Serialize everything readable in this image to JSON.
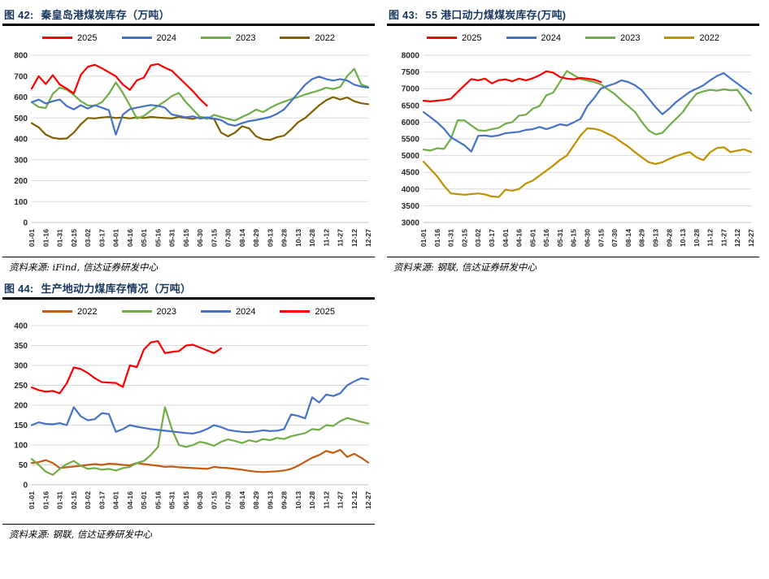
{
  "chart_data": [
    {
      "type": "line",
      "fig_label": "图 42:",
      "title": "秦皇岛港煤炭库存（万吨）",
      "source": "资料来源: iFind, 信达证券研发中心",
      "legend_order": [
        "2025",
        "2024",
        "2023",
        "2022"
      ],
      "legend_position": "top",
      "grid": "horizontal",
      "points_per_tick": 2,
      "y_axis": {
        "min": 0,
        "max": 800,
        "step": 100,
        "tick_labels": [
          "800",
          "700",
          "600",
          "500",
          "400",
          "300",
          "200",
          "100",
          "0"
        ]
      },
      "x_tick_labels": [
        "01-01",
        "01-16",
        "01-31",
        "02-15",
        "03-02",
        "03-17",
        "04-01",
        "04-16",
        "05-01",
        "05-16",
        "05-31",
        "06-15",
        "06-30",
        "07-15",
        "07-30",
        "08-14",
        "08-29",
        "09-13",
        "09-28",
        "10-13",
        "10-28",
        "11-12",
        "11-27",
        "12-12",
        "12-27"
      ],
      "series": [
        {
          "name": "2022",
          "color": "#7F6000",
          "values": [
            475,
            455,
            420,
            405,
            400,
            402,
            430,
            470,
            500,
            498,
            502,
            505,
            500,
            502,
            498,
            503,
            500,
            505,
            502,
            500,
            498,
            505,
            500,
            495,
            505,
            500,
            495,
            430,
            412,
            430,
            460,
            450,
            412,
            398,
            395,
            408,
            415,
            445,
            480,
            500,
            530,
            560,
            585,
            600,
            588,
            598,
            580,
            570,
            566
          ]
        },
        {
          "name": "2023",
          "color": "#70AD47",
          "values": [
            575,
            552,
            548,
            615,
            645,
            635,
            610,
            580,
            560,
            558,
            575,
            615,
            670,
            620,
            560,
            497,
            510,
            535,
            558,
            580,
            605,
            620,
            575,
            540,
            505,
            495,
            515,
            505,
            495,
            488,
            505,
            520,
            540,
            528,
            548,
            565,
            578,
            590,
            600,
            612,
            622,
            632,
            645,
            638,
            648,
            700,
            735,
            660,
            648
          ]
        },
        {
          "name": "2024",
          "color": "#4472C4",
          "values": [
            575,
            588,
            569,
            580,
            588,
            557,
            541,
            561,
            545,
            561,
            549,
            537,
            420,
            516,
            542,
            549,
            556,
            562,
            558,
            549,
            516,
            510,
            503,
            508,
            497,
            503,
            497,
            490,
            470,
            463,
            475,
            485,
            490,
            497,
            505,
            520,
            541,
            580,
            620,
            659,
            686,
            698,
            686,
            679,
            686,
            679,
            659,
            650,
            645
          ]
        },
        {
          "name": "2025",
          "color": "#FF0000",
          "values": [
            640,
            700,
            662,
            705,
            660,
            640,
            617,
            706,
            745,
            754,
            738,
            719,
            699,
            660,
            634,
            680,
            693,
            752,
            758,
            740,
            726,
            693,
            660,
            628,
            590,
            558
          ]
        }
      ]
    },
    {
      "type": "line",
      "fig_label": "图 43:",
      "title": "55 港口动力煤煤炭库存(万吨)",
      "source": "资料来源: 钢联, 信达证券研发中心",
      "legend_order": [
        "2025",
        "2024",
        "2023",
        "2022"
      ],
      "legend_position": "top",
      "grid": "horizontal",
      "points_per_tick": 2,
      "y_axis": {
        "min": 3000,
        "max": 8000,
        "step": 500,
        "tick_labels": [
          "8000",
          "7500",
          "7000",
          "6500",
          "6000",
          "5500",
          "5000",
          "4500",
          "4000",
          "3500",
          "3000"
        ]
      },
      "x_tick_labels": [
        "01-01",
        "01-16",
        "01-31",
        "02-15",
        "03-02",
        "03-17",
        "04-01",
        "04-16",
        "05-01",
        "05-16",
        "05-31",
        "06-15",
        "06-30",
        "07-15",
        "07-30",
        "08-14",
        "08-29",
        "09-13",
        "09-28",
        "10-13",
        "10-28",
        "11-12",
        "11-27",
        "12-12",
        "12-27"
      ],
      "series": [
        {
          "name": "2022",
          "color": "#BF9000",
          "values": [
            4820,
            4600,
            4380,
            4100,
            3870,
            3850,
            3830,
            3850,
            3870,
            3840,
            3780,
            3760,
            3980,
            3950,
            4000,
            4165,
            4250,
            4400,
            4550,
            4700,
            4870,
            5000,
            5300,
            5600,
            5815,
            5800,
            5750,
            5650,
            5550,
            5400,
            5266,
            5100,
            4943,
            4800,
            4750,
            4800,
            4900,
            4983,
            5050,
            5104,
            4950,
            4861,
            5100,
            5226,
            5250,
            5104,
            5150,
            5185,
            5104
          ]
        },
        {
          "name": "2023",
          "color": "#70AD47",
          "values": [
            5180,
            5150,
            5220,
            5200,
            5500,
            6057,
            6050,
            5900,
            5760,
            5740,
            5790,
            5830,
            5953,
            6000,
            6196,
            6220,
            6400,
            6478,
            6800,
            6884,
            7207,
            7530,
            7408,
            7290,
            7248,
            7200,
            7126,
            6980,
            6843,
            6650,
            6478,
            6300,
            6000,
            5750,
            5630,
            5680,
            5900,
            6100,
            6300,
            6600,
            6850,
            6920,
            6964,
            6940,
            6980,
            6950,
            6960,
            6680,
            6342
          ]
        },
        {
          "name": "2024",
          "color": "#4472C4",
          "values": [
            6300,
            6150,
            5993,
            5800,
            5550,
            5430,
            5306,
            5120,
            5590,
            5600,
            5573,
            5605,
            5670,
            5690,
            5710,
            5766,
            5790,
            5856,
            5790,
            5856,
            5937,
            5900,
            5993,
            6100,
            6478,
            6721,
            7005,
            7085,
            7150,
            7250,
            7200,
            7100,
            6950,
            6700,
            6450,
            6236,
            6400,
            6600,
            6750,
            6900,
            7000,
            7100,
            7250,
            7380,
            7465,
            7300,
            7150,
            7000,
            6850
          ]
        },
        {
          "name": "2025",
          "color": "#FF0000",
          "values": [
            6640,
            6620,
            6640,
            6660,
            6700,
            6900,
            7100,
            7290,
            7250,
            7300,
            7160,
            7250,
            7280,
            7220,
            7300,
            7250,
            7310,
            7400,
            7520,
            7480,
            7350,
            7300,
            7280,
            7320,
            7300,
            7270,
            7200
          ]
        }
      ]
    },
    {
      "type": "line",
      "fig_label": "图 44:",
      "title": "生产地动力煤库存情况（万吨）",
      "source": "资料来源: 钢联, 信达证券研发中心",
      "legend_order": [
        "2022",
        "2023",
        "2024",
        "2025"
      ],
      "legend_position": "top",
      "grid": "horizontal",
      "points_per_tick": 2,
      "y_axis": {
        "min": 0,
        "max": 400,
        "step": 50,
        "tick_labels": [
          "400",
          "350",
          "300",
          "250",
          "200",
          "150",
          "100",
          "50",
          "0"
        ]
      },
      "x_tick_labels": [
        "01-01",
        "01-16",
        "01-31",
        "02-15",
        "03-02",
        "03-17",
        "04-01",
        "04-16",
        "05-01",
        "05-16",
        "05-31",
        "06-15",
        "06-30",
        "07-15",
        "07-30",
        "08-14",
        "08-29",
        "09-13",
        "09-28",
        "10-13",
        "10-28",
        "11-12",
        "11-27",
        "12-12",
        "12-27"
      ],
      "series": [
        {
          "name": "2022",
          "color": "#C55A11",
          "values": [
            55,
            57,
            62,
            55,
            42,
            44,
            46,
            48,
            50,
            52,
            50,
            53,
            52,
            50,
            49,
            55,
            52,
            50,
            48,
            45,
            46,
            44,
            43,
            42,
            41,
            40,
            45,
            43,
            42,
            40,
            38,
            35,
            33,
            32,
            33,
            34,
            36,
            40,
            48,
            58,
            68,
            75,
            85,
            80,
            88,
            70,
            78,
            68,
            56
          ]
        },
        {
          "name": "2023",
          "color": "#70AD47",
          "values": [
            65,
            50,
            33,
            25,
            40,
            52,
            60,
            48,
            40,
            42,
            38,
            40,
            36,
            42,
            45,
            55,
            60,
            75,
            95,
            195,
            140,
            100,
            95,
            100,
            108,
            104,
            98,
            108,
            114,
            110,
            105,
            112,
            108,
            115,
            112,
            118,
            115,
            122,
            126,
            130,
            140,
            138,
            150,
            148,
            160,
            168,
            163,
            158,
            154
          ]
        },
        {
          "name": "2024",
          "color": "#4472C4",
          "values": [
            150,
            157,
            153,
            152,
            155,
            150,
            195,
            172,
            162,
            165,
            180,
            178,
            133,
            140,
            150,
            146,
            143,
            140,
            138,
            136,
            134,
            132,
            130,
            129,
            133,
            140,
            150,
            145,
            138,
            135,
            133,
            132,
            134,
            137,
            135,
            136,
            140,
            177,
            173,
            167,
            220,
            207,
            227,
            223,
            230,
            250,
            260,
            268,
            265
          ]
        },
        {
          "name": "2025",
          "color": "#FF0000",
          "values": [
            245,
            238,
            234,
            236,
            230,
            255,
            295,
            291,
            281,
            268,
            258,
            257,
            256,
            246,
            300,
            296,
            340,
            358,
            361,
            331,
            334,
            336,
            350,
            352,
            345,
            338,
            331,
            343
          ]
        }
      ]
    }
  ]
}
